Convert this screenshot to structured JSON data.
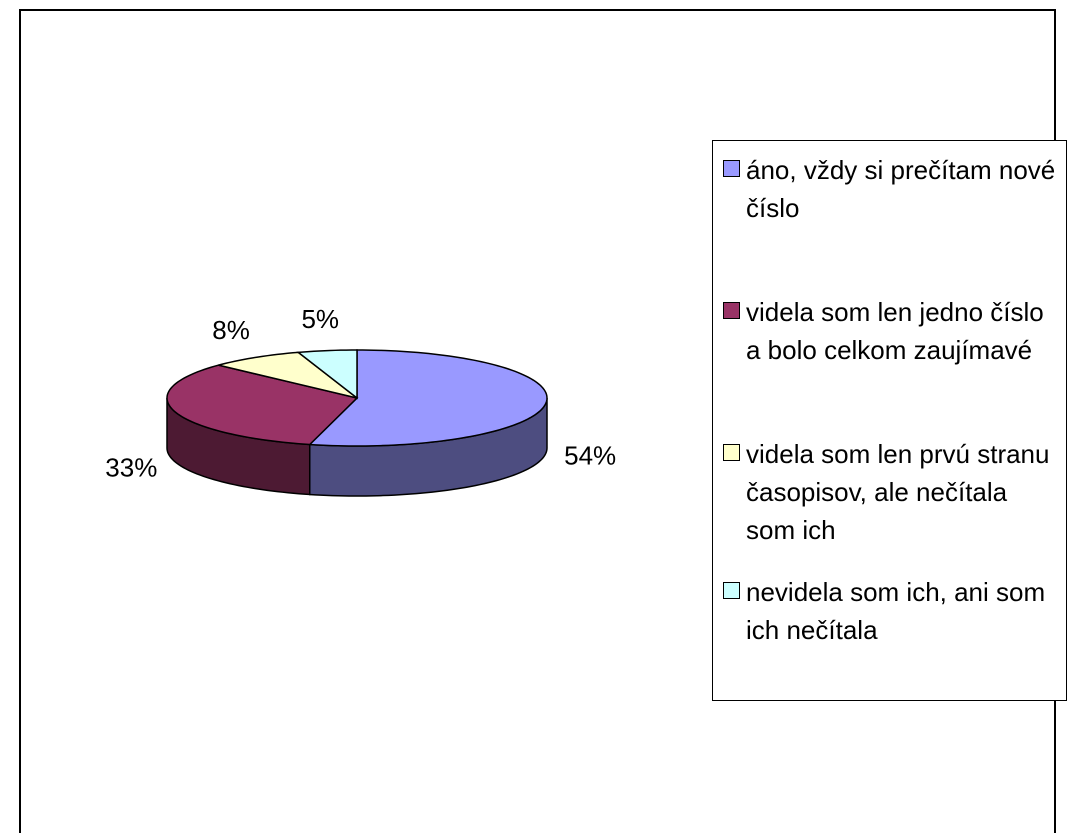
{
  "chart_data": {
    "type": "pie",
    "categories": [
      "áno, vždy si prečítam nové číslo",
      "videla som len jedno číslo a bolo celkom zaujímavé",
      "videla som len prvú stranu časopisov, ale nečítala som ich",
      "nevidela som ich, ani som ich nečítala"
    ],
    "values": [
      54,
      33,
      8,
      5
    ],
    "value_labels": [
      "54%",
      "33%",
      "8%",
      "5%"
    ],
    "colors": [
      "#9999ff",
      "#993366",
      "#ffffcc",
      "#ccffff"
    ],
    "legend": "right"
  }
}
